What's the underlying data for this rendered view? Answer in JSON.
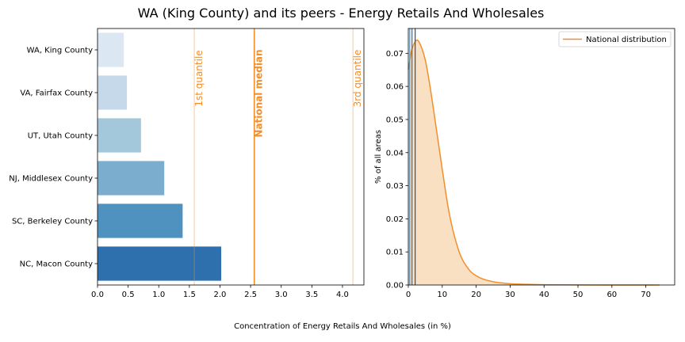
{
  "figure": {
    "title": "WA (King County) and its peers - Energy Retails And Wholesales",
    "shared_xlabel": "Concentration of Energy Retails And Wholesales (in %)"
  },
  "colors": {
    "accent": "#f28e2b",
    "fill": "#fae0c3",
    "bars": [
      "#dbe7f3",
      "#c5d9ea",
      "#a3c8dc",
      "#7badcf",
      "#5092bf",
      "#2e6fad"
    ],
    "vlines": [
      "#4a8fc0",
      "#2c6da8",
      "#1f5390"
    ]
  },
  "chart_data": [
    {
      "type": "bar",
      "orientation": "horizontal",
      "categories": [
        "WA, King County",
        "VA, Fairfax County",
        "UT, Utah County",
        "NJ, Middlesex County",
        "SC, Berkeley County",
        "NC, Macon County"
      ],
      "values": [
        0.43,
        0.48,
        0.71,
        1.09,
        1.39,
        2.02
      ],
      "xlim": [
        0,
        4.35
      ],
      "xticks": [
        "0.0",
        "0.5",
        "1.0",
        "1.5",
        "2.0",
        "2.5",
        "3.0",
        "3.5",
        "4.0"
      ],
      "reference_lines": [
        {
          "label": "1st quantile",
          "value": 1.58
        },
        {
          "label": "National median",
          "value": 2.56
        },
        {
          "label": "3rd quantile",
          "value": 4.17
        }
      ],
      "grid": false
    },
    {
      "type": "area",
      "series": [
        {
          "name": "National distribution"
        }
      ],
      "x": [
        0,
        1,
        2,
        2.5,
        3,
        4,
        5,
        6,
        7,
        8,
        10,
        12,
        15,
        18,
        20,
        22,
        25,
        30,
        35,
        40,
        50,
        60,
        74
      ],
      "y": [
        0.065,
        0.071,
        0.0735,
        0.074,
        0.0737,
        0.0715,
        0.068,
        0.0625,
        0.056,
        0.049,
        0.035,
        0.022,
        0.01,
        0.0045,
        0.0028,
        0.0018,
        0.001,
        0.0004,
        0.0002,
        0.0001,
        3e-05,
        1e-05,
        0.0
      ],
      "ylabel": "% of all areas",
      "xlim": [
        0,
        78.5
      ],
      "ylim": [
        0,
        0.0775
      ],
      "xticks": [
        "0",
        "10",
        "20",
        "30",
        "40",
        "50",
        "60",
        "70"
      ],
      "yticks": [
        "0.00",
        "0.01",
        "0.02",
        "0.03",
        "0.04",
        "0.05",
        "0.06",
        "0.07"
      ],
      "peer_lines": [
        0.43,
        1.09,
        2.02
      ],
      "legend_position": "top-right",
      "grid": false
    }
  ]
}
